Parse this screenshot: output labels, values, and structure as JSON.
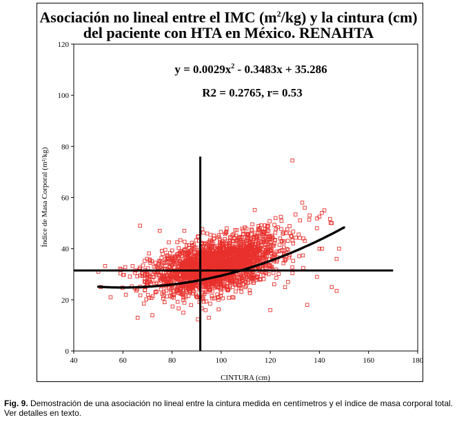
{
  "title": {
    "line1_pre": "Asociación no lineal entre el IMC (m",
    "line1_sup": "2",
    "line1_post": "/kg) y la cintura (cm)",
    "line2": "del paciente con HTA en México. RENAHTA"
  },
  "chart_data": {
    "type": "scatter",
    "xlabel": "CINTURA (cm)",
    "ylabel": "Índice de Masa Corporal (m²/kg)",
    "xlim": [
      40,
      180
    ],
    "ylim": [
      0,
      120
    ],
    "x_ticks": [
      40,
      60,
      80,
      100,
      120,
      140,
      160,
      180
    ],
    "y_ticks": [
      0,
      20,
      40,
      60,
      80,
      100,
      120
    ],
    "marker_color": "#e8302c",
    "trend_color": "#000000",
    "equation_pre": "y = 0.0029x",
    "equation_sup": "2",
    "equation_post": " - 0.3483x + 35.286",
    "r2_text": "R2 = 0.2765, r= 0.53",
    "trendline": {
      "a": 0.0029,
      "b": -0.3483,
      "c": 35.286,
      "x_from": 50,
      "x_to": 150
    },
    "reference_lines": {
      "vertical_x": 91.5,
      "vertical_y_top": 76,
      "horizontal_y": 31.5,
      "horizontal_x_to": 170
    },
    "cloud": {
      "n_points": 2400,
      "x_mean": 98,
      "x_sd": 13,
      "x_min": 50,
      "x_max": 150,
      "residual_sd": 4.8
    },
    "outliers": [
      {
        "x": 129,
        "y": 74.5
      },
      {
        "x": 133,
        "y": 58
      },
      {
        "x": 134,
        "y": 56
      },
      {
        "x": 136,
        "y": 53
      },
      {
        "x": 140,
        "y": 52.5
      },
      {
        "x": 141,
        "y": 54
      },
      {
        "x": 142,
        "y": 55
      },
      {
        "x": 145,
        "y": 50
      },
      {
        "x": 148,
        "y": 40
      },
      {
        "x": 147,
        "y": 36
      },
      {
        "x": 145,
        "y": 25
      },
      {
        "x": 147,
        "y": 23.5
      },
      {
        "x": 139,
        "y": 29
      },
      {
        "x": 140,
        "y": 40
      },
      {
        "x": 141,
        "y": 40
      },
      {
        "x": 128,
        "y": 46
      },
      {
        "x": 124,
        "y": 44
      },
      {
        "x": 67,
        "y": 49
      },
      {
        "x": 75,
        "y": 47
      },
      {
        "x": 85,
        "y": 47
      },
      {
        "x": 50,
        "y": 31
      },
      {
        "x": 51,
        "y": 25
      },
      {
        "x": 55,
        "y": 21
      },
      {
        "x": 66,
        "y": 13
      },
      {
        "x": 72,
        "y": 14
      },
      {
        "x": 95,
        "y": 13
      },
      {
        "x": 120,
        "y": 16
      },
      {
        "x": 126,
        "y": 25
      },
      {
        "x": 135,
        "y": 18
      },
      {
        "x": 139,
        "y": 48
      }
    ]
  },
  "caption": {
    "label": "Fig. 9.",
    "text": " Demostración de una asociación no lineal entre la cintura medida en centímetros y el índice de masa corporal total. Ver detalles en texto."
  }
}
